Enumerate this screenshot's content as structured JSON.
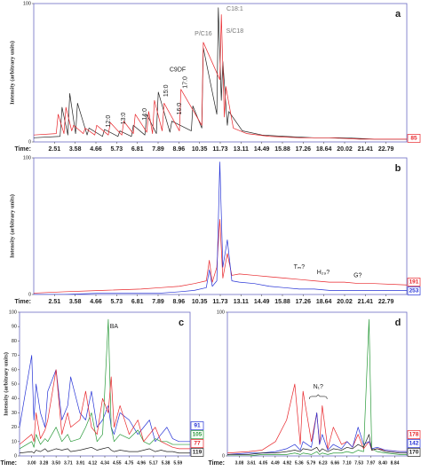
{
  "chart_data": [
    {
      "type": "line",
      "panel_label": "a",
      "y_label": "Intensity (arbitrary units)",
      "time_label": "Time:",
      "xlim": [
        1.6,
        23.5
      ],
      "ylim": [
        0,
        100
      ],
      "yticks": [
        0,
        100
      ],
      "xticks": [
        2.51,
        3.58,
        4.66,
        5.73,
        6.81,
        7.89,
        8.96,
        10.35,
        11.73,
        13.11,
        14.49,
        15.88,
        17.26,
        18.64,
        20.02,
        21.41,
        22.79
      ],
      "annotations": [
        "C18:1",
        "P/C16",
        "S/C18",
        "C9DF",
        "17:0",
        "15:0",
        "16:0",
        "14:0",
        "13:0",
        "12:0"
      ],
      "series": [
        {
          "color": "#222222",
          "x": [
            1.6,
            2.8,
            2.9,
            3.2,
            3.3,
            3.6,
            3.7,
            4.2,
            4.3,
            5.0,
            5.1,
            5.8,
            5.9,
            6.5,
            6.6,
            7.2,
            7.3,
            7.8,
            7.9,
            8.5,
            8.6,
            9.8,
            9.9,
            10.5,
            10.6,
            11.5,
            11.6,
            11.8,
            11.9,
            12.2,
            12.3,
            13.2,
            14.5,
            16,
            18,
            20,
            22,
            23.5
          ],
          "values": [
            3,
            4,
            25,
            5,
            35,
            6,
            28,
            5,
            10,
            4,
            9,
            4,
            8,
            4,
            12,
            5,
            20,
            6,
            36,
            7,
            15,
            8,
            26,
            10,
            68,
            20,
            97,
            30,
            58,
            12,
            22,
            8,
            5,
            4,
            3,
            3,
            2,
            2
          ]
        },
        {
          "name": "85",
          "color": "#e8262b",
          "x": [
            1.6,
            2.6,
            2.7,
            3.0,
            3.1,
            3.4,
            3.5,
            4.0,
            4.1,
            4.6,
            4.7,
            5.3,
            5.4,
            6.0,
            6.1,
            6.6,
            6.7,
            7.3,
            7.4,
            7.6,
            7.7,
            8.1,
            8.2,
            9.0,
            9.1,
            10.5,
            10.6,
            11.7,
            11.8,
            12.0,
            12.1,
            12.6,
            13.5,
            15,
            17,
            19,
            21,
            23.5
          ],
          "values": [
            5,
            6,
            20,
            6,
            25,
            8,
            12,
            6,
            10,
            5,
            12,
            5,
            14,
            5,
            15,
            6,
            20,
            7,
            22,
            6,
            30,
            8,
            28,
            8,
            38,
            12,
            72,
            45,
            92,
            18,
            40,
            10,
            6,
            4,
            3,
            3,
            2,
            2
          ]
        }
      ]
    },
    {
      "type": "line",
      "panel_label": "b",
      "y_label": "Intensity (arbitrary units)",
      "time_label": "Time:",
      "xlim": [
        1.6,
        23.5
      ],
      "ylim": [
        0,
        100
      ],
      "yticks": [
        0,
        100
      ],
      "xticks": [
        2.51,
        3.58,
        4.66,
        5.73,
        6.81,
        7.89,
        8.96,
        10.35,
        11.73,
        13.11,
        14.49,
        15.88,
        17.26,
        18.64,
        20.02,
        21.41,
        22.79
      ],
      "annotations": [
        "Tₘ?",
        "H₂₉?",
        "G?"
      ],
      "series": [
        {
          "name": "191",
          "color": "#e8262b",
          "x": [
            1.6,
            3,
            5,
            7,
            8,
            9,
            10,
            10.8,
            11,
            11.2,
            11.5,
            11.7,
            11.9,
            12.2,
            12.5,
            13,
            14,
            15,
            16,
            17,
            18,
            19,
            20,
            21,
            22,
            23.5
          ],
          "values": [
            1,
            2,
            3,
            4,
            5,
            6,
            8,
            10,
            25,
            9,
            20,
            55,
            12,
            30,
            14,
            15,
            14,
            13,
            12,
            11,
            10,
            9,
            9,
            8,
            8,
            7
          ]
        },
        {
          "name": "253",
          "color": "#2633d6",
          "x": [
            1.6,
            3,
            5,
            7,
            8,
            9,
            10,
            10.8,
            11,
            11.2,
            11.5,
            11.7,
            11.9,
            12.2,
            12.5,
            13,
            14,
            15,
            16,
            17,
            18,
            19,
            20,
            21,
            22,
            23.5
          ],
          "values": [
            0,
            0,
            1,
            1,
            1,
            2,
            3,
            5,
            18,
            6,
            10,
            97,
            20,
            40,
            10,
            9,
            8,
            6,
            5,
            4,
            4,
            3,
            3,
            3,
            3,
            3
          ]
        }
      ]
    },
    {
      "type": "line",
      "panel_label": "c",
      "y_label": "Intensity (arbitrary units)",
      "time_label": "Time:",
      "xlim": [
        2.9,
        5.7
      ],
      "ylim": [
        0,
        100
      ],
      "yticks": [
        0,
        10,
        20,
        30,
        40,
        50,
        60,
        70,
        80,
        90,
        100
      ],
      "xticks": [
        {
          "value": 3,
          "label": "3.00"
        },
        3.28,
        {
          "value": 3.5,
          "label": "3.50"
        },
        3.71,
        3.91,
        4.12,
        4.34,
        4.55,
        4.75,
        4.96,
        5.17,
        5.38,
        5.59
      ],
      "annotations": [
        "BA"
      ],
      "series": [
        {
          "name": "91",
          "color": "#2633d6",
          "x": [
            2.9,
            3.0,
            3.05,
            3.1,
            3.2,
            3.3,
            3.35,
            3.5,
            3.6,
            3.7,
            3.75,
            3.9,
            4.0,
            4.1,
            4.2,
            4.3,
            4.4,
            4.45,
            4.5,
            4.6,
            4.75,
            4.9,
            5.0,
            5.1,
            5.2,
            5.3,
            5.4,
            5.5,
            5.6,
            5.7
          ],
          "values": [
            20,
            70,
            25,
            50,
            30,
            20,
            45,
            60,
            25,
            35,
            55,
            30,
            25,
            45,
            20,
            25,
            35,
            20,
            15,
            30,
            25,
            15,
            20,
            25,
            10,
            15,
            20,
            12,
            10,
            10
          ]
        },
        {
          "name": "105",
          "color": "#2a9a3a",
          "x": [
            2.9,
            3.0,
            3.05,
            3.1,
            3.2,
            3.3,
            3.35,
            3.5,
            3.6,
            3.7,
            3.75,
            3.9,
            4.0,
            4.1,
            4.2,
            4.3,
            4.4,
            4.45,
            4.5,
            4.6,
            4.75,
            4.9,
            5.0,
            5.1,
            5.2,
            5.3,
            5.4,
            5.5,
            5.6,
            5.7
          ],
          "values": [
            5,
            10,
            6,
            15,
            8,
            12,
            10,
            20,
            10,
            15,
            10,
            12,
            20,
            30,
            10,
            15,
            95,
            20,
            10,
            15,
            12,
            18,
            10,
            8,
            12,
            10,
            10,
            8,
            8,
            8
          ]
        },
        {
          "name": "77",
          "color": "#e8262b",
          "x": [
            2.9,
            3.0,
            3.05,
            3.1,
            3.2,
            3.3,
            3.35,
            3.5,
            3.6,
            3.7,
            3.75,
            3.9,
            4.0,
            4.1,
            4.2,
            4.3,
            4.4,
            4.45,
            4.5,
            4.6,
            4.75,
            4.9,
            5.0,
            5.1,
            5.2,
            5.3,
            5.4,
            5.5,
            5.6,
            5.7
          ],
          "values": [
            8,
            15,
            10,
            30,
            12,
            18,
            25,
            60,
            15,
            30,
            20,
            25,
            45,
            20,
            15,
            40,
            30,
            55,
            20,
            35,
            15,
            25,
            10,
            15,
            20,
            10,
            8,
            6,
            5,
            5
          ]
        },
        {
          "name": "119",
          "color": "#222222",
          "x": [
            2.9,
            3.0,
            3.05,
            3.1,
            3.2,
            3.3,
            3.35,
            3.5,
            3.6,
            3.7,
            3.75,
            3.9,
            4.0,
            4.1,
            4.2,
            4.3,
            4.4,
            4.45,
            4.5,
            4.6,
            4.75,
            4.9,
            5.0,
            5.1,
            5.2,
            5.3,
            5.4,
            5.5,
            5.6,
            5.7
          ],
          "values": [
            2,
            3,
            2,
            4,
            3,
            5,
            3,
            5,
            4,
            5,
            3,
            4,
            5,
            6,
            4,
            5,
            6,
            4,
            3,
            4,
            3,
            3,
            4,
            5,
            3,
            4,
            3,
            3,
            2,
            2
          ]
        }
      ]
    },
    {
      "type": "line",
      "panel_label": "d",
      "time_label": "Time:",
      "xlim": [
        2.9,
        9.0
      ],
      "ylim": [
        0,
        100
      ],
      "yticks": [
        0,
        100
      ],
      "xticks": [
        3.08,
        3.61,
        4.05,
        4.49,
        4.92,
        5.36,
        5.79,
        6.23,
        6.66,
        {
          "value": 7.1,
          "label": "7.10"
        },
        7.53,
        7.97,
        {
          "value": 8.4,
          "label": "8.40"
        },
        8.84
      ],
      "annotations": [
        "N₁?"
      ],
      "series": [
        {
          "color": "#2a9a3a",
          "x": [
            2.9,
            3.5,
            4.0,
            4.5,
            4.9,
            5.2,
            5.4,
            5.5,
            5.8,
            6.0,
            6.1,
            6.2,
            6.4,
            6.6,
            6.9,
            7.1,
            7.3,
            7.5,
            7.7,
            7.9,
            8.0,
            8.2,
            8.5,
            8.9,
            9.0
          ],
          "values": [
            0,
            0,
            1,
            1,
            1,
            2,
            1,
            2,
            1,
            3,
            1,
            2,
            1,
            2,
            2,
            3,
            2,
            4,
            3,
            95,
            5,
            3,
            2,
            1,
            1
          ]
        },
        {
          "name": "178",
          "color": "#e8262b",
          "x": [
            2.9,
            3.5,
            4.0,
            4.5,
            4.9,
            5.2,
            5.4,
            5.5,
            5.8,
            6.0,
            6.1,
            6.2,
            6.4,
            6.6,
            6.9,
            7.1,
            7.3,
            7.5,
            7.7,
            7.9,
            8.0,
            8.2,
            8.5,
            8.9,
            9.0
          ],
          "values": [
            2,
            3,
            4,
            10,
            25,
            50,
            8,
            45,
            10,
            30,
            8,
            35,
            5,
            20,
            8,
            10,
            6,
            15,
            5,
            10,
            4,
            5,
            4,
            3,
            3
          ]
        },
        {
          "name": "142",
          "color": "#2633d6",
          "x": [
            2.9,
            3.5,
            4.0,
            4.5,
            4.9,
            5.2,
            5.4,
            5.5,
            5.8,
            6.0,
            6.1,
            6.2,
            6.4,
            6.6,
            6.9,
            7.1,
            7.3,
            7.5,
            7.7,
            7.9,
            8.0,
            8.2,
            8.5,
            8.9,
            9.0
          ],
          "values": [
            1,
            2,
            2,
            3,
            5,
            8,
            4,
            10,
            6,
            30,
            8,
            15,
            4,
            8,
            5,
            10,
            6,
            20,
            8,
            10,
            5,
            6,
            4,
            3,
            3
          ]
        },
        {
          "name": "170",
          "color": "#222222",
          "x": [
            2.9,
            3.5,
            4.0,
            4.5,
            4.9,
            5.2,
            5.4,
            5.5,
            5.8,
            6.0,
            6.1,
            6.2,
            6.4,
            6.6,
            6.9,
            7.1,
            7.3,
            7.5,
            7.7,
            7.9,
            8.0,
            8.2,
            8.5,
            8.9,
            9.0
          ],
          "values": [
            1,
            1,
            2,
            2,
            3,
            4,
            3,
            5,
            4,
            6,
            3,
            5,
            3,
            5,
            4,
            6,
            5,
            8,
            6,
            15,
            4,
            5,
            3,
            2,
            2
          ]
        }
      ]
    }
  ]
}
